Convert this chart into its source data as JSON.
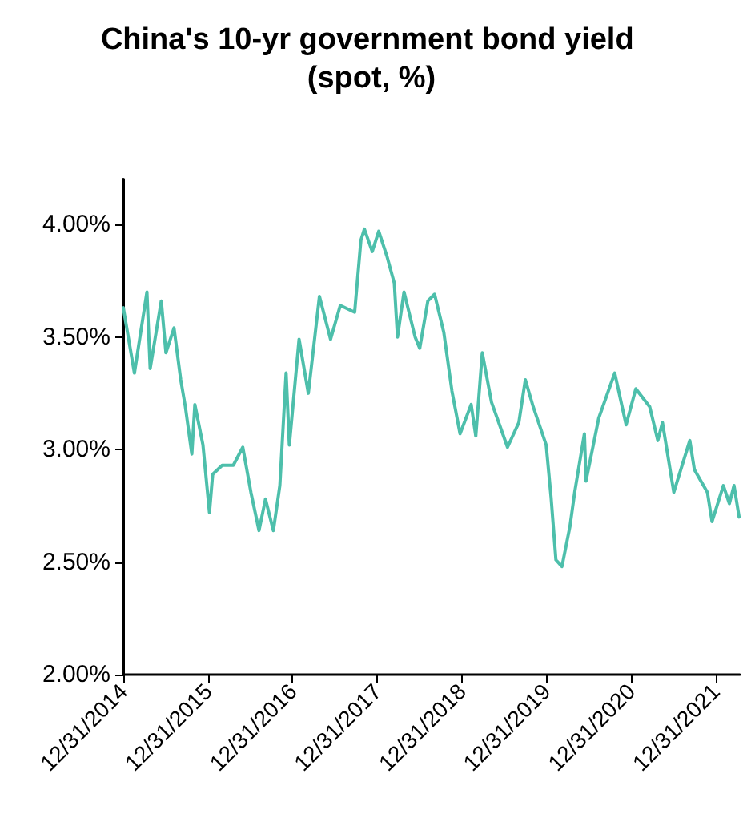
{
  "chart_data": {
    "type": "line",
    "title": "China's 10-yr government bond yield (spot, %)",
    "x": [
      "2014-12-31",
      "2015-02-17",
      "2015-04-12",
      "2015-04-26",
      "2015-06-13",
      "2015-07-03",
      "2015-08-07",
      "2015-09-05",
      "2015-09-25",
      "2015-10-23",
      "2015-11-05",
      "2015-12-10",
      "2016-01-07",
      "2016-01-21",
      "2016-03-02",
      "2016-04-19",
      "2016-05-30",
      "2016-07-04",
      "2016-08-08",
      "2016-09-05",
      "2016-10-09",
      "2016-11-06",
      "2016-12-03",
      "2016-12-17",
      "2017-01-28",
      "2017-03-09",
      "2017-04-26",
      "2017-06-13",
      "2017-07-25",
      "2017-09-25",
      "2017-10-22",
      "2017-11-06",
      "2017-12-10",
      "2018-01-07",
      "2018-02-11",
      "2018-03-15",
      "2018-03-29",
      "2018-04-26",
      "2018-06-13",
      "2018-07-03",
      "2018-08-07",
      "2018-09-05",
      "2018-10-15",
      "2018-11-19",
      "2018-12-24",
      "2019-02-10",
      "2019-03-02",
      "2019-03-30",
      "2019-05-09",
      "2019-07-17",
      "2019-09-04",
      "2019-10-02",
      "2019-11-05",
      "2019-12-31",
      "2020-01-21",
      "2020-02-11",
      "2020-03-08",
      "2020-04-12",
      "2020-05-02",
      "2020-06-13",
      "2020-06-20",
      "2020-08-14",
      "2020-10-22",
      "2020-12-10",
      "2021-01-21",
      "2021-03-22",
      "2021-04-26",
      "2021-05-16",
      "2021-07-04",
      "2021-09-11",
      "2021-10-01",
      "2021-11-26",
      "2021-12-16",
      "2022-02-03",
      "2022-03-01",
      "2022-03-21",
      "2022-04-12"
    ],
    "series": [
      {
        "color": "#4dbfab",
        "values": [
          3.63,
          3.34,
          3.7,
          3.36,
          3.66,
          3.43,
          3.54,
          3.31,
          3.19,
          2.98,
          3.2,
          3.02,
          2.72,
          2.89,
          2.93,
          2.93,
          3.01,
          2.81,
          2.64,
          2.78,
          2.64,
          2.84,
          3.34,
          3.02,
          3.49,
          3.25,
          3.68,
          3.49,
          3.64,
          3.61,
          3.93,
          3.98,
          3.88,
          3.97,
          3.86,
          3.74,
          3.5,
          3.7,
          3.5,
          3.45,
          3.66,
          3.69,
          3.52,
          3.26,
          3.07,
          3.2,
          3.06,
          3.43,
          3.21,
          3.01,
          3.12,
          3.31,
          3.19,
          3.02,
          2.79,
          2.51,
          2.48,
          2.66,
          2.81,
          3.07,
          2.86,
          3.14,
          3.34,
          3.11,
          3.27,
          3.19,
          3.04,
          3.12,
          2.81,
          3.04,
          2.91,
          2.81,
          2.68,
          2.84,
          2.76,
          2.84,
          2.7
        ]
      }
    ],
    "xlim": [
      "2014-12-31",
      "2022-04-15"
    ],
    "xticks": [
      {
        "value": "2014-12-31",
        "label": "12/31/2014"
      },
      {
        "value": "2015-12-31",
        "label": "12/31/2015"
      },
      {
        "value": "2016-12-31",
        "label": "12/31/2016"
      },
      {
        "value": "2017-12-31",
        "label": "12/31/2017"
      },
      {
        "value": "2018-12-31",
        "label": "12/31/2018"
      },
      {
        "value": "2019-12-31",
        "label": "12/31/2019"
      },
      {
        "value": "2020-12-31",
        "label": "12/31/2020"
      },
      {
        "value": "2021-12-31",
        "label": "12/31/2021"
      }
    ],
    "ylim": [
      2,
      4.2
    ],
    "yticks": [
      {
        "value": 2,
        "label": "2.00%"
      },
      {
        "value": 2.5,
        "label": "2.50%"
      },
      {
        "value": 3,
        "label": "3.00%"
      },
      {
        "value": 3.5,
        "label": "3.50%"
      },
      {
        "value": 4,
        "label": "4.00%"
      }
    ],
    "grid": false,
    "marker": "none",
    "line_style": "solid"
  }
}
